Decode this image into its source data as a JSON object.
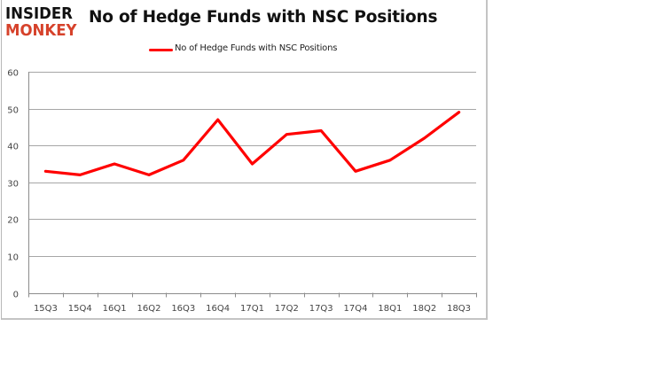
{
  "logo": {
    "line1": "INSIDER",
    "line2": "MONKEY",
    "line1_color": "#111111",
    "line2_color": "#d6422b"
  },
  "chart_data": {
    "type": "line",
    "title": "No of Hedge Funds with NSC Positions",
    "xlabel": "",
    "ylabel": "",
    "categories": [
      "15Q3",
      "15Q4",
      "16Q1",
      "16Q2",
      "16Q3",
      "16Q4",
      "17Q1",
      "17Q2",
      "17Q3",
      "17Q4",
      "18Q1",
      "18Q2",
      "18Q3"
    ],
    "series": [
      {
        "name": "No of Hedge Funds with NSC Positions",
        "color": "#ff0000",
        "values": [
          33,
          32,
          35,
          32,
          36,
          47,
          35,
          43,
          44,
          33,
          36,
          42,
          49
        ]
      }
    ],
    "ylim": [
      0,
      60
    ],
    "yticks": [
      0,
      10,
      20,
      30,
      40,
      50,
      60
    ],
    "grid": true,
    "legend_position": "top"
  }
}
